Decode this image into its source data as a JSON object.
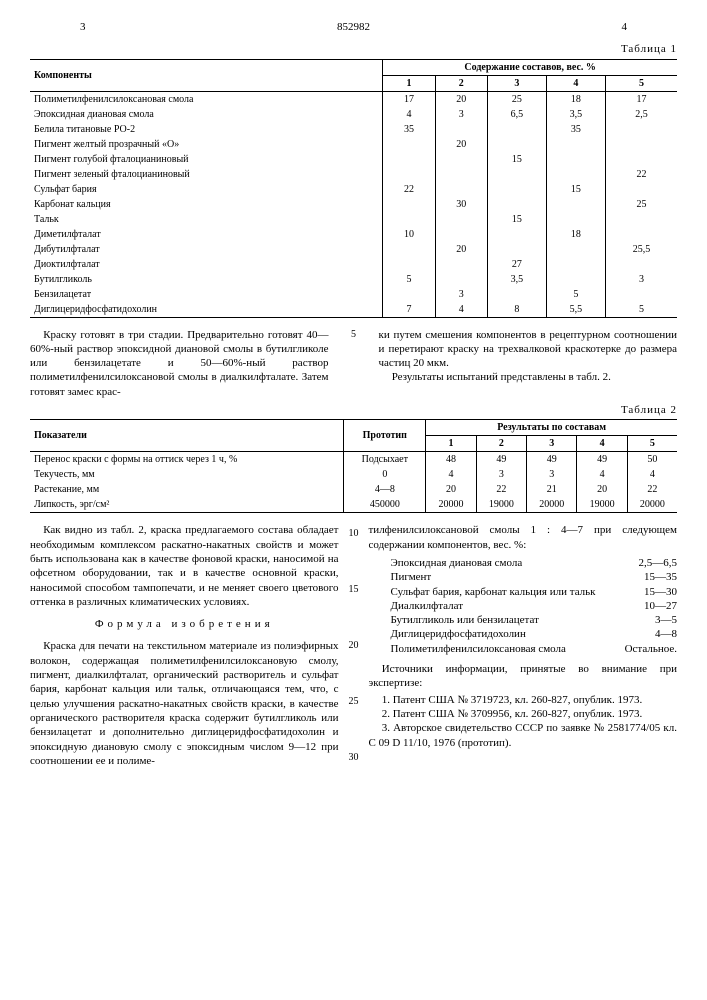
{
  "header": {
    "page_left": "3",
    "doc_number": "852982",
    "page_right": "4"
  },
  "table1": {
    "caption": "Таблица 1",
    "head_components": "Компоненты",
    "head_content": "Содержание составов, вес. %",
    "cols": [
      "1",
      "2",
      "3",
      "4",
      "5"
    ],
    "rows": [
      {
        "label": "Полиметилфенилсилоксановая смола",
        "v": [
          "17",
          "20",
          "25",
          "18",
          "17"
        ]
      },
      {
        "label": "Эпоксидная диановая смола",
        "v": [
          "4",
          "3",
          "6,5",
          "3,5",
          "2,5"
        ]
      },
      {
        "label": "Белила титановые РО-2",
        "v": [
          "35",
          "",
          "",
          "35",
          ""
        ]
      },
      {
        "label": "Пигмент желтый прозрачный «О»",
        "v": [
          "",
          "20",
          "",
          "",
          ""
        ]
      },
      {
        "label": "Пигмент голубой фталоцианиновый",
        "v": [
          "",
          "",
          "15",
          "",
          ""
        ]
      },
      {
        "label": "Пигмент зеленый фталоцианиновый",
        "v": [
          "",
          "",
          "",
          "",
          "22"
        ]
      },
      {
        "label": "Сульфат бария",
        "v": [
          "22",
          "",
          "",
          "15",
          ""
        ]
      },
      {
        "label": "Карбонат кальция",
        "v": [
          "",
          "30",
          "",
          "",
          "25"
        ]
      },
      {
        "label": "Тальк",
        "v": [
          "",
          "",
          "15",
          "",
          ""
        ]
      },
      {
        "label": "Диметилфталат",
        "v": [
          "10",
          "",
          "",
          "18",
          ""
        ]
      },
      {
        "label": "Дибутилфталат",
        "v": [
          "",
          "20",
          "",
          "",
          "25,5"
        ]
      },
      {
        "label": "Диоктилфталат",
        "v": [
          "",
          "",
          "27",
          "",
          ""
        ]
      },
      {
        "label": "Бутилгликоль",
        "v": [
          "5",
          "",
          "3,5",
          "",
          "3"
        ]
      },
      {
        "label": "Бензилацетат",
        "v": [
          "",
          "3",
          "",
          "5",
          ""
        ]
      },
      {
        "label": "Диглицеридфосфатидохолин",
        "v": [
          "7",
          "4",
          "8",
          "5,5",
          "5"
        ]
      }
    ]
  },
  "para1_left": "Краску готовят в три стадии. Предварительно готовят 40—60%-ный раствор эпоксидной диановой смолы в бутилгликоле или бензилацетате и 50—60%-ный раствор полиметилфенилсилоксановой смолы в диалкилфталате. Затем готовят замес крас-",
  "para1_right": "ки путем смешения компонентов в рецептурном соотношении и перетирают краску на трехвалковой краскотерке до размера частиц 20 мкм.",
  "para1_right2": "Результаты испытаний представлены в табл. 2.",
  "line_no_5": "5",
  "table2": {
    "caption": "Таблица 2",
    "head_indicators": "Показатели",
    "head_proto": "Прототип",
    "head_results": "Результаты по составам",
    "cols": [
      "1",
      "2",
      "3",
      "4",
      "5"
    ],
    "rows": [
      {
        "label": "Перенос краски с формы на оттиск через 1 ч, %",
        "proto": "Подсыхает",
        "v": [
          "48",
          "49",
          "49",
          "49",
          "50"
        ]
      },
      {
        "label": "Текучесть, мм",
        "proto": "0",
        "v": [
          "4",
          "3",
          "3",
          "4",
          "4"
        ]
      },
      {
        "label": "Растекание, мм",
        "proto": "4—8",
        "v": [
          "20",
          "22",
          "21",
          "20",
          "22"
        ]
      },
      {
        "label": "Липкость, эрг/см²",
        "proto": "450000",
        "v": [
          "20000",
          "19000",
          "20000",
          "19000",
          "20000"
        ]
      }
    ]
  },
  "body": {
    "p1": "Как видно из табл. 2, краска предлагаемого состава обладает необходимым комплексом раскатно-накатных свойств и может быть использована как в качестве фоновой краски, наносимой на офсетном оборудовании, так и в качестве основной краски, наносимой способом тампопечати, и не меняет своего цветового оттенка в различных климатических условиях.",
    "formula_title": "Формула изобретения",
    "p2": "Краска для печати на текстильном материале из полиэфирных волокон, содержащая полиметилфенилсилоксановую смолу, пигмент, диалкилфталат, органический растворитель и сульфат бария, карбонат кальция или тальк, отличающаяся тем, что, с целью улучшения раскатно-накатных свойств краски, в качестве органического растворителя краска содержит бутилгликоль или бензилацетат и дополнительно диглицеридфосфатидохолин и эпоксидную диановую смолу с эпоксидным числом 9—12 при соотношении ее и полиме-",
    "p3_head": "тилфенилсилоксановой смолы 1 : 4—7 при следующем содержании компонентов, вес. %:",
    "components": [
      {
        "name": "Эпоксидная диановая смола",
        "val": "2,5—6,5"
      },
      {
        "name": "Пигмент",
        "val": "15—35"
      },
      {
        "name": "Сульфат бария, карбонат кальция или тальк",
        "val": "15—30"
      },
      {
        "name": "Диалкилфталат",
        "val": "10—27"
      },
      {
        "name": "Бутилгликоль или бензилацетат",
        "val": "3—5"
      },
      {
        "name": "Диглицеридфосфатидохолин",
        "val": "4—8"
      },
      {
        "name": "Полиметилфенилсилоксановая смола",
        "val": "Остальное."
      }
    ],
    "sources_head": "Источники информации, принятые во внимание при экспертизе:",
    "s1": "1. Патент США № 3719723, кл. 260-827, опублик. 1973.",
    "s2": "2. Патент США № 3709956, кл. 260-827, опублик. 1973.",
    "s3": "3. Авторское свидетельство СССР по заявке № 2581774/05 кл. С 09 D 11/10, 1976 (прототип)."
  },
  "margin_nums": {
    "n10": "10",
    "n15": "15",
    "n20": "20",
    "n25": "25",
    "n30": "30"
  }
}
